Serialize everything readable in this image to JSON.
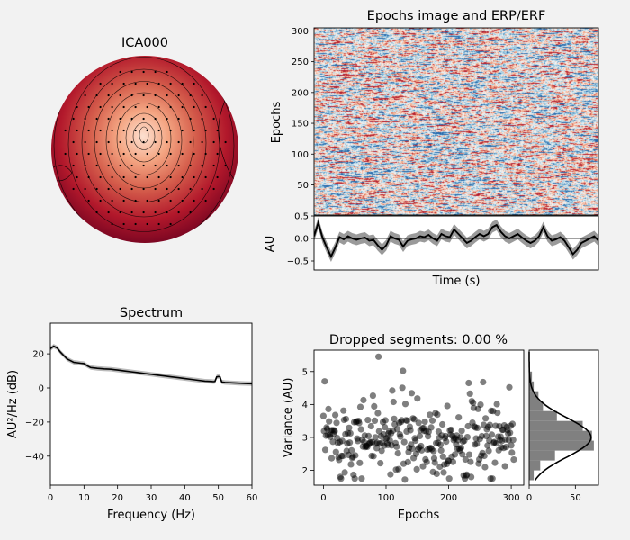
{
  "figure": {
    "background": "#f2f2f2"
  },
  "chart_data": [
    {
      "id": "topomap",
      "type": "heatmap",
      "title": "ICA000",
      "colormap": [
        "#fde0d0",
        "#e87d67",
        "#b2182b",
        "#67001f"
      ]
    },
    {
      "id": "epochs_image",
      "type": "heatmap",
      "title": "Epochs image and ERP/ERF",
      "ylabel": "Epochs",
      "ylim": [
        1,
        305
      ],
      "yticks": [
        50,
        100,
        150,
        200,
        250,
        300
      ],
      "n_epochs": 305,
      "colormap": [
        "#2166ac",
        "#f7f7f7",
        "#b2182b"
      ]
    },
    {
      "id": "erp",
      "type": "line",
      "xlabel": "Time (s)",
      "ylabel": "AU",
      "ylim": [
        -0.7,
        0.5
      ],
      "yticks": [
        "0.5",
        "0.0",
        "−0.5"
      ],
      "yticks_values": [
        0.5,
        0.0,
        -0.5
      ],
      "series": [
        {
          "values": [
            0.05,
            0.35,
            0.02,
            -0.2,
            -0.4,
            -0.2,
            0.03,
            -0.02,
            0.05,
            0.0,
            -0.03,
            0.0,
            0.02,
            -0.05,
            -0.03,
            -0.15,
            -0.25,
            -0.15,
            0.05,
            0.0,
            -0.03,
            -0.18,
            -0.05,
            -0.02,
            0.0,
            0.05,
            0.03,
            0.08,
            0.0,
            -0.05,
            0.1,
            0.05,
            0.03,
            0.2,
            0.1,
            0.0,
            -0.1,
            -0.05,
            0.03,
            0.1,
            0.05,
            0.1,
            0.25,
            0.3,
            0.15,
            0.05,
            0.0,
            0.05,
            0.1,
            0.02,
            -0.05,
            -0.1,
            -0.05,
            0.05,
            0.25,
            0.05,
            -0.05,
            -0.02,
            0.03,
            -0.05,
            -0.2,
            -0.35,
            -0.25,
            -0.1,
            -0.05,
            0.0,
            0.05,
            -0.05
          ]
        }
      ]
    },
    {
      "id": "spectrum",
      "type": "line",
      "title": "Spectrum",
      "xlabel": "Frequency (Hz)",
      "ylabel": "AU²/Hz (dB)",
      "xlim": [
        0,
        60
      ],
      "ylim": [
        -57,
        38
      ],
      "xticks": [
        0,
        10,
        20,
        30,
        40,
        50,
        60
      ],
      "yticks": [
        "20",
        "0",
        "−20",
        "−40"
      ],
      "yticks_values": [
        20,
        0,
        -20,
        -40
      ],
      "series": [
        {
          "x": [
            0,
            1,
            2,
            3,
            4,
            5,
            6,
            7,
            8,
            9,
            10,
            11,
            12,
            14,
            16,
            18,
            20,
            22,
            24,
            26,
            28,
            30,
            32,
            34,
            36,
            38,
            40,
            42,
            44,
            46,
            48,
            48.5,
            49,
            49.5,
            50,
            50.5,
            51,
            52,
            54,
            56,
            58,
            60
          ],
          "values": [
            23,
            24.5,
            23.5,
            21,
            19,
            17,
            16,
            15,
            14.8,
            14.5,
            14.3,
            13,
            12,
            11.5,
            11.2,
            11,
            10.5,
            10,
            9.5,
            9,
            8.5,
            8,
            7.5,
            7,
            6.5,
            6,
            5.5,
            5,
            4.5,
            4,
            3.8,
            3.7,
            3.8,
            6.5,
            6.7,
            6.5,
            3.5,
            3.2,
            3,
            2.8,
            2.6,
            2.5
          ]
        }
      ]
    },
    {
      "id": "dropped",
      "type": "scatter",
      "title": "Dropped segments: 0.00 %",
      "xlabel": "Epochs",
      "ylabel": "Variance (AU)",
      "xlim": [
        -15,
        320
      ],
      "ylim": [
        1.55,
        5.65
      ],
      "xticks": [
        0,
        100,
        200,
        300
      ],
      "yticks": [
        2,
        3,
        4,
        5
      ],
      "n_points": 305,
      "mean": 3.0,
      "sd": 0.6
    },
    {
      "id": "variance_hist",
      "type": "bar",
      "xlim": [
        0,
        75
      ],
      "xticks": [
        0,
        50
      ],
      "bins": [
        1.7,
        2.0,
        2.3,
        2.6,
        2.9,
        3.2,
        3.5,
        3.8,
        4.1,
        4.4,
        4.7,
        5.0,
        5.3
      ],
      "counts": [
        5,
        12,
        28,
        70,
        68,
        58,
        30,
        15,
        10,
        5,
        3,
        1
      ],
      "kde_peak": 67
    }
  ]
}
